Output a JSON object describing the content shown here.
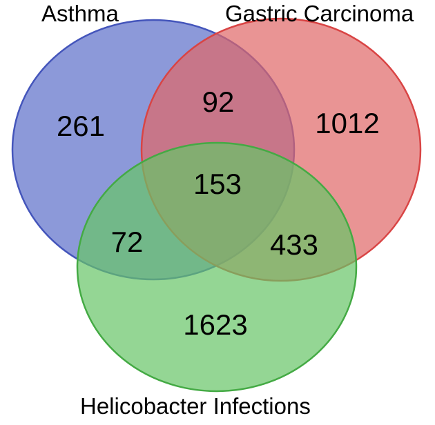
{
  "venn": {
    "sets": [
      {
        "key": "asthma",
        "label": "Asthma",
        "fill": "#6677cc",
        "stroke": "#4455bb"
      },
      {
        "key": "gastric",
        "label": "Gastric Carcinoma",
        "fill": "#e06666",
        "stroke": "#d94444"
      },
      {
        "key": "helico",
        "label": "Helicobacter Infections",
        "fill": "#66c466",
        "stroke": "#44aa44"
      }
    ],
    "regions": {
      "asthma_only": "261",
      "asthma_gastric": "92",
      "gastric_only": "1012",
      "all_three": "153",
      "asthma_helico": "72",
      "gastric_helico": "433",
      "helico_only": "1623"
    }
  }
}
